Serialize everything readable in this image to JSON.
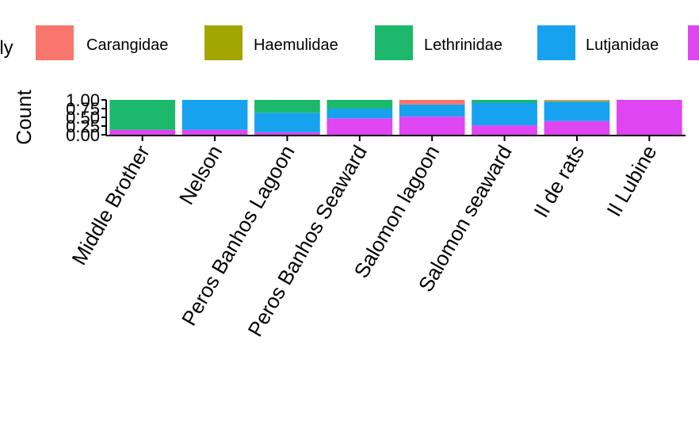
{
  "chart_data": {
    "type": "bar",
    "stacked": true,
    "normalized": true,
    "ylabel": "Count",
    "ylim": [
      0,
      1
    ],
    "yticks": [
      "0.00",
      "0.25",
      "0.50",
      "0.75",
      "1.00"
    ],
    "ytick_values": [
      0,
      0.25,
      0.5,
      0.75,
      1
    ],
    "legend": {
      "title_fragment": "ily",
      "placement": "top",
      "entries": [
        "Carangidae",
        "Haemulidae",
        "Lethrinidae",
        "Lutjanidae",
        ""
      ]
    },
    "categories": [
      "Middle Brother",
      "Nelson",
      "Peros Banhos Lagoon",
      "Peros Banhos Seaward",
      "Salomon lagoon",
      "Salomon seaward",
      "Il de rats",
      "Il Lubine"
    ],
    "series": [
      {
        "name": "Carangidae",
        "color": "#F8766D",
        "values": [
          0,
          0,
          0,
          0,
          0.13,
          0,
          0.02,
          0
        ]
      },
      {
        "name": "Haemulidae",
        "color": "#A3A500",
        "values": [
          0,
          0,
          0,
          0,
          0,
          0,
          0.02,
          0
        ]
      },
      {
        "name": "Lethrinidae",
        "color": "#1CB86B",
        "values": [
          0.86,
          0,
          0.37,
          0.25,
          0,
          0.08,
          0.02,
          0
        ]
      },
      {
        "name": "Lutjanidae",
        "color": "#17A2F0",
        "values": [
          0,
          0.86,
          0.56,
          0.28,
          0.35,
          0.65,
          0.55,
          0
        ]
      },
      {
        "name": "",
        "color": "#E045F2",
        "values": [
          0.14,
          0.14,
          0.07,
          0.47,
          0.52,
          0.27,
          0.39,
          1.0
        ]
      }
    ]
  }
}
